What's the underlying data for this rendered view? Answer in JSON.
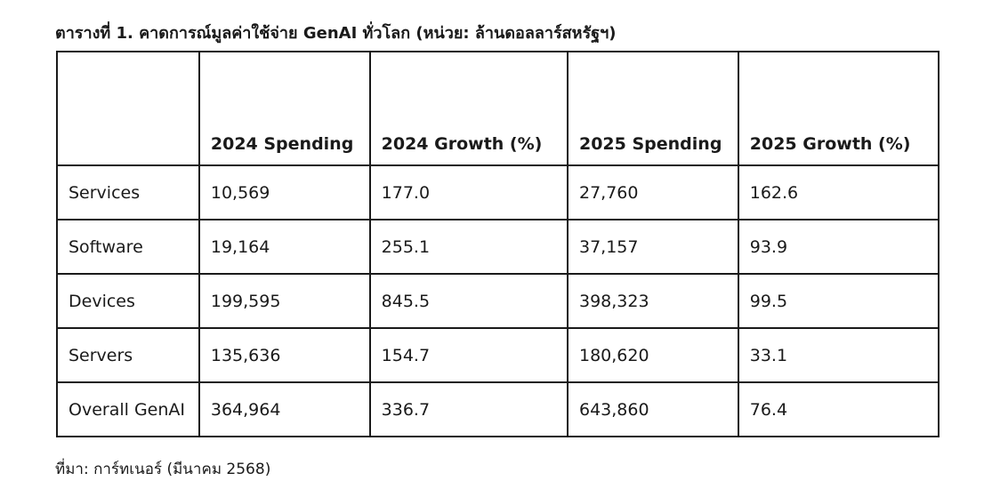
{
  "caption": "ตารางที่ 1. คาดการณ์มูลค่าใช้จ่าย GenAI ทั่วโลก (หน่วย: ล้านดอลลาร์สหรัฐฯ)",
  "table": {
    "headers": [
      "",
      "2024 Spending",
      "2024 Growth (%)",
      "2025 Spending",
      "2025 Growth (%)"
    ],
    "rows": [
      [
        "Services",
        "10,569",
        "177.0",
        "27,760",
        "162.6"
      ],
      [
        "Software",
        "19,164",
        "255.1",
        "37,157",
        "93.9"
      ],
      [
        "Devices",
        "199,595",
        "845.5",
        "398,323",
        "99.5"
      ],
      [
        "Servers",
        "135,636",
        "154.7",
        "180,620",
        "33.1"
      ],
      [
        "Overall GenAI",
        "364,964",
        "336.7",
        "643,860",
        "76.4"
      ]
    ]
  },
  "source": "ที่มา: การ์ทเนอร์ (มีนาคม 2568)"
}
